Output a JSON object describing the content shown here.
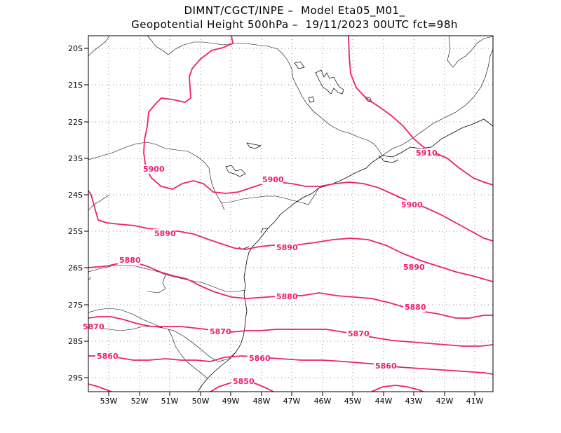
{
  "title": {
    "line1": "DIMNT/CGCT/INPE –  Model Eta05_M01_",
    "line2": "Geopotential Height 500hPa –  19/11/2023 00UTC fct=98h"
  },
  "axes": {
    "lon_labels": [
      "53W",
      "52W",
      "51W",
      "50W",
      "49W",
      "48W",
      "47W",
      "46W",
      "45W",
      "44W",
      "43W",
      "42W",
      "41W"
    ],
    "lat_labels": [
      "20S",
      "21S",
      "22S",
      "23S",
      "24S",
      "25S",
      "26S",
      "27S",
      "28S",
      "29S"
    ]
  },
  "contour_labels": [
    "5910",
    "5900",
    "5900",
    "5900",
    "5890",
    "5890",
    "5890",
    "5880",
    "5880",
    "5880",
    "5870",
    "5870",
    "5870",
    "5860",
    "5860",
    "5860",
    "5850"
  ],
  "colors": {
    "contour": "#ee1f71",
    "coastline": "#000000",
    "grid": "#888888"
  }
}
